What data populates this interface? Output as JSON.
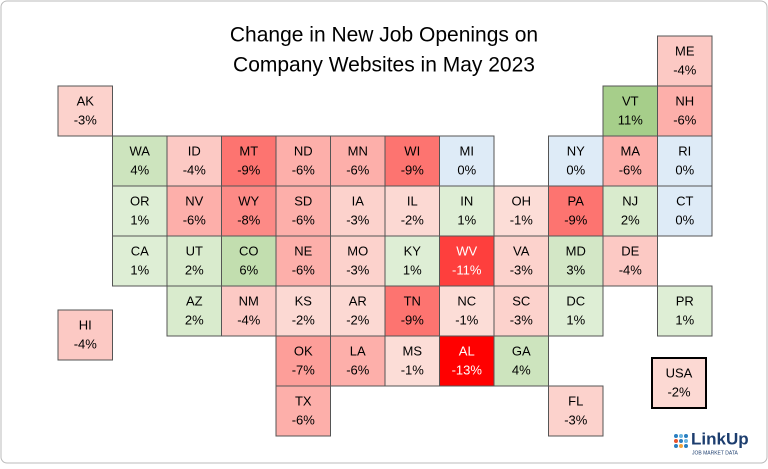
{
  "chart_data": {
    "type": "tile-map",
    "title_lines": [
      "Change in New Job Openings on",
      "Company Websites in May 2023"
    ],
    "categories": [
      "ME",
      "AK",
      "VT",
      "NH",
      "WA",
      "ID",
      "MT",
      "ND",
      "MN",
      "WI",
      "MI",
      "NY",
      "MA",
      "RI",
      "OR",
      "NV",
      "WY",
      "SD",
      "IA",
      "IL",
      "IN",
      "OH",
      "PA",
      "NJ",
      "CT",
      "CA",
      "UT",
      "CO",
      "NE",
      "MO",
      "KY",
      "WV",
      "VA",
      "MD",
      "DE",
      "HI",
      "AZ",
      "NM",
      "KS",
      "AR",
      "TN",
      "NC",
      "SC",
      "DC",
      "PR",
      "OK",
      "LA",
      "MS",
      "AL",
      "GA",
      "TX",
      "FL"
    ],
    "values": [
      -4,
      -3,
      11,
      -6,
      4,
      -4,
      -9,
      -6,
      -6,
      -9,
      0,
      0,
      -6,
      0,
      1,
      -6,
      -8,
      -6,
      -3,
      -2,
      1,
      -1,
      -9,
      2,
      0,
      1,
      2,
      6,
      -6,
      -3,
      1,
      -11,
      -3,
      3,
      -4,
      -4,
      2,
      -4,
      -2,
      -2,
      -9,
      -1,
      -3,
      1,
      1,
      -7,
      -6,
      -1,
      -13,
      4,
      -6,
      -3
    ],
    "value_labels": [
      "-4%",
      "-3%",
      "11%",
      "-6%",
      "4%",
      "-4%",
      "-9%",
      "-6%",
      "-6%",
      "-9%",
      "0%",
      "0%",
      "-6%",
      "0%",
      "1%",
      "-6%",
      "-8%",
      "-6%",
      "-3%",
      "-2%",
      "1%",
      "-1%",
      "-9%",
      "2%",
      "0%",
      "1%",
      "2%",
      "6%",
      "-6%",
      "-3%",
      "1%",
      "-11%",
      "-3%",
      "3%",
      "-4%",
      "-4%",
      "2%",
      "-4%",
      "-2%",
      "-2%",
      "-9%",
      "-1%",
      "-3%",
      "1%",
      "1%",
      "-7%",
      "-6%",
      "-1%",
      "-13%",
      "4%",
      "-6%",
      "-3%"
    ],
    "total": {
      "name": "USA",
      "value": -2,
      "value_label": "-2%"
    },
    "source_logo": "LinkUp",
    "source_tagline": "JOB MARKET DATA"
  }
}
